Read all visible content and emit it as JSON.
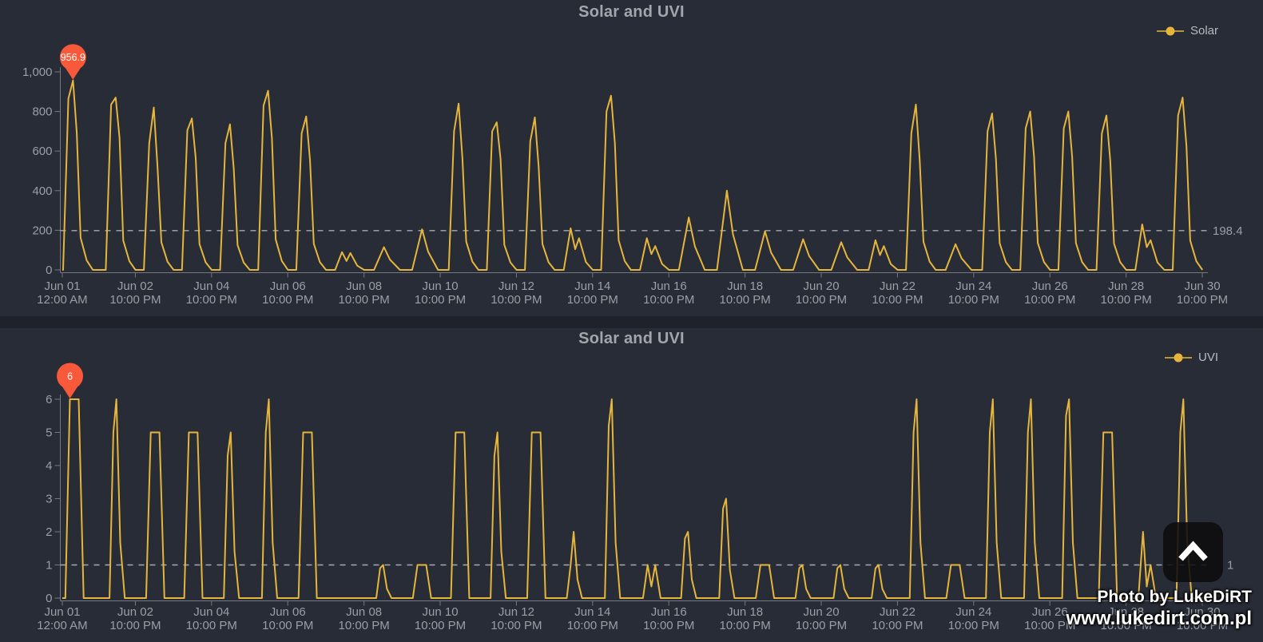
{
  "colors": {
    "series": "#e6b63c",
    "marker": "#f8593b",
    "axis_line": "#75797f",
    "axis_text": "#9a9ea5",
    "dashed_line": "#b4b7bc",
    "title_text": "#a2a6ac",
    "legend_text": "#b7bac0",
    "background": "#282c36",
    "divider": "#1f222b"
  },
  "watermark": {
    "line1": "Photo by LukeDiRT",
    "line2": "www.lukedirt.com.pl"
  },
  "scroll_button": {
    "icon": "chevron-up"
  },
  "chart_data": [
    {
      "id": "solar",
      "type": "line",
      "title": "Solar and UVI",
      "legend_label": "Solar",
      "ylim": [
        0,
        1000
      ],
      "y_axis": {
        "max": 1000,
        "ticks": [
          {
            "value": 0,
            "label": "0"
          },
          {
            "value": 200,
            "label": "200"
          },
          {
            "value": 400,
            "label": "400"
          },
          {
            "value": 600,
            "label": "600"
          },
          {
            "value": 800,
            "label": "800"
          },
          {
            "value": 1000,
            "label": "1,000"
          }
        ]
      },
      "reference_line": {
        "value": 198.4,
        "label": "198.4"
      },
      "anomaly_marker": {
        "label": "956.9",
        "date": "Jun 01",
        "value": 956.9
      },
      "x_axis": {
        "tick_labels": [
          [
            "Jun 01",
            "12:00 AM"
          ],
          [
            "Jun 02",
            "10:00 PM"
          ],
          [
            "Jun 04",
            "10:00 PM"
          ],
          [
            "Jun 06",
            "10:00 PM"
          ],
          [
            "Jun 08",
            "10:00 PM"
          ],
          [
            "Jun 10",
            "10:00 PM"
          ],
          [
            "Jun 12",
            "10:00 PM"
          ],
          [
            "Jun 14",
            "10:00 PM"
          ],
          [
            "Jun 16",
            "10:00 PM"
          ],
          [
            "Jun 18",
            "10:00 PM"
          ],
          [
            "Jun 20",
            "10:00 PM"
          ],
          [
            "Jun 22",
            "10:00 PM"
          ],
          [
            "Jun 24",
            "10:00 PM"
          ],
          [
            "Jun 26",
            "10:00 PM"
          ],
          [
            "Jun 28",
            "10:00 PM"
          ],
          [
            "Jun 30",
            "10:00 PM"
          ]
        ]
      },
      "daily_data": [
        {
          "date": "Jun 01",
          "peak": 956.9,
          "shape": "sharp",
          "shoulder": 865
        },
        {
          "date": "Jun 02",
          "peak": 870,
          "shape": "sharp",
          "shoulder": 835
        },
        {
          "date": "Jun 03",
          "peak": 820,
          "shape": "sharp",
          "shoulder": 640
        },
        {
          "date": "Jun 04",
          "peak": 765,
          "shape": "sharp",
          "shoulder": 705
        },
        {
          "date": "Jun 05",
          "peak": 735,
          "shape": "sharp",
          "shoulder": 640
        },
        {
          "date": "Jun 06",
          "peak": 905,
          "shape": "sharp",
          "shoulder": 830
        },
        {
          "date": "Jun 07",
          "peak": 775,
          "shape": "sharp",
          "shoulder": 690
        },
        {
          "date": "Jun 08",
          "peak": 90,
          "shape": "double",
          "second": 85
        },
        {
          "date": "Jun 09",
          "peak": 115,
          "shape": "low"
        },
        {
          "date": "Jun 10",
          "peak": 205,
          "shape": "low"
        },
        {
          "date": "Jun 11",
          "peak": 840,
          "shape": "sharp",
          "shoulder": 700
        },
        {
          "date": "Jun 12",
          "peak": 745,
          "shape": "sharp",
          "shoulder": 700
        },
        {
          "date": "Jun 13",
          "peak": 770,
          "shape": "sharp",
          "shoulder": 650
        },
        {
          "date": "Jun 14",
          "peak": 210,
          "shape": "double",
          "second": 160
        },
        {
          "date": "Jun 15",
          "peak": 880,
          "shape": "sharp",
          "shoulder": 800
        },
        {
          "date": "Jun 16",
          "peak": 160,
          "shape": "double",
          "second": 120
        },
        {
          "date": "Jun 17",
          "peak": 265,
          "shape": "low"
        },
        {
          "date": "Jun 18",
          "peak": 400,
          "shape": "low"
        },
        {
          "date": "Jun 19",
          "peak": 195,
          "shape": "low"
        },
        {
          "date": "Jun 20",
          "peak": 155,
          "shape": "low"
        },
        {
          "date": "Jun 21",
          "peak": 140,
          "shape": "low"
        },
        {
          "date": "Jun 22",
          "peak": 150,
          "shape": "double",
          "second": 120
        },
        {
          "date": "Jun 23",
          "peak": 835,
          "shape": "sharp",
          "shoulder": 690
        },
        {
          "date": "Jun 24",
          "peak": 130,
          "shape": "low"
        },
        {
          "date": "Jun 25",
          "peak": 790,
          "shape": "sharp",
          "shoulder": 700
        },
        {
          "date": "Jun 26",
          "peak": 800,
          "shape": "sharp",
          "shoulder": 715
        },
        {
          "date": "Jun 27",
          "peak": 800,
          "shape": "sharp",
          "shoulder": 715
        },
        {
          "date": "Jun 28",
          "peak": 780,
          "shape": "sharp",
          "shoulder": 690
        },
        {
          "date": "Jun 29",
          "peak": 230,
          "shape": "double",
          "second": 150
        },
        {
          "date": "Jun 30",
          "peak": 870,
          "shape": "sharp",
          "shoulder": 780
        }
      ]
    },
    {
      "id": "uvi",
      "type": "line",
      "title": "Solar and UVI",
      "legend_label": "UVI",
      "ylim": [
        0,
        6
      ],
      "y_axis": {
        "max": 6,
        "ticks": [
          {
            "value": 0,
            "label": "0"
          },
          {
            "value": 1,
            "label": "1"
          },
          {
            "value": 2,
            "label": "2"
          },
          {
            "value": 3,
            "label": "3"
          },
          {
            "value": 4,
            "label": "4"
          },
          {
            "value": 5,
            "label": "5"
          },
          {
            "value": 6,
            "label": "6"
          }
        ]
      },
      "reference_line": {
        "value": 1,
        "label": "1"
      },
      "anomaly_marker": {
        "label": "6",
        "date": "Jun 01",
        "value": 6
      },
      "x_axis": {
        "tick_labels": [
          [
            "Jun 01",
            "12:00 AM"
          ],
          [
            "Jun 02",
            "10:00 PM"
          ],
          [
            "Jun 04",
            "10:00 PM"
          ],
          [
            "Jun 06",
            "10:00 PM"
          ],
          [
            "Jun 08",
            "10:00 PM"
          ],
          [
            "Jun 10",
            "10:00 PM"
          ],
          [
            "Jun 12",
            "10:00 PM"
          ],
          [
            "Jun 14",
            "10:00 PM"
          ],
          [
            "Jun 16",
            "10:00 PM"
          ],
          [
            "Jun 18",
            "10:00 PM"
          ],
          [
            "Jun 20",
            "10:00 PM"
          ],
          [
            "Jun 22",
            "10:00 PM"
          ],
          [
            "Jun 24",
            "10:00 PM"
          ],
          [
            "Jun 26",
            "10:00 PM"
          ],
          [
            "Jun 28",
            "10:00 PM"
          ],
          [
            "Jun 30",
            "10:00 PM"
          ]
        ]
      },
      "daily_data": [
        {
          "date": "Jun 01",
          "peak": 6,
          "shape": "flat"
        },
        {
          "date": "Jun 02",
          "peak": 6,
          "shape": "sharp",
          "shoulder": 5
        },
        {
          "date": "Jun 03",
          "peak": 5,
          "shape": "flat"
        },
        {
          "date": "Jun 04",
          "peak": 5,
          "shape": "flat"
        },
        {
          "date": "Jun 05",
          "peak": 5,
          "shape": "sharp",
          "shoulder": 4.3
        },
        {
          "date": "Jun 06",
          "peak": 6,
          "shape": "sharp",
          "shoulder": 5
        },
        {
          "date": "Jun 07",
          "peak": 5,
          "shape": "flat"
        },
        {
          "date": "Jun 08",
          "peak": 0,
          "shape": "none"
        },
        {
          "date": "Jun 09",
          "peak": 1,
          "shape": "sharp"
        },
        {
          "date": "Jun 10",
          "peak": 1,
          "shape": "flat"
        },
        {
          "date": "Jun 11",
          "peak": 5,
          "shape": "flat"
        },
        {
          "date": "Jun 12",
          "peak": 5,
          "shape": "sharp",
          "shoulder": 4.3
        },
        {
          "date": "Jun 13",
          "peak": 5,
          "shape": "flat"
        },
        {
          "date": "Jun 14",
          "peak": 2,
          "shape": "sharp",
          "shoulder": 1
        },
        {
          "date": "Jun 15",
          "peak": 6,
          "shape": "sharp",
          "shoulder": 5.2
        },
        {
          "date": "Jun 16",
          "peak": 1,
          "shape": "double",
          "second": 1
        },
        {
          "date": "Jun 17",
          "peak": 2,
          "shape": "sharp"
        },
        {
          "date": "Jun 18",
          "peak": 3,
          "shape": "sharp"
        },
        {
          "date": "Jun 19",
          "peak": 1,
          "shape": "flat"
        },
        {
          "date": "Jun 20",
          "peak": 1,
          "shape": "sharp"
        },
        {
          "date": "Jun 21",
          "peak": 1,
          "shape": "sharp"
        },
        {
          "date": "Jun 22",
          "peak": 1,
          "shape": "sharp"
        },
        {
          "date": "Jun 23",
          "peak": 6,
          "shape": "sharp",
          "shoulder": 5
        },
        {
          "date": "Jun 24",
          "peak": 1,
          "shape": "flat"
        },
        {
          "date": "Jun 25",
          "peak": 6,
          "shape": "sharp",
          "shoulder": 5
        },
        {
          "date": "Jun 26",
          "peak": 6,
          "shape": "sharp",
          "shoulder": 5
        },
        {
          "date": "Jun 27",
          "peak": 6,
          "shape": "sharp",
          "shoulder": 5.5
        },
        {
          "date": "Jun 28",
          "peak": 5,
          "shape": "flat"
        },
        {
          "date": "Jun 29",
          "peak": 2,
          "shape": "double",
          "second": 1
        },
        {
          "date": "Jun 30",
          "peak": 6,
          "shape": "sharp",
          "shoulder": 5
        }
      ]
    }
  ]
}
